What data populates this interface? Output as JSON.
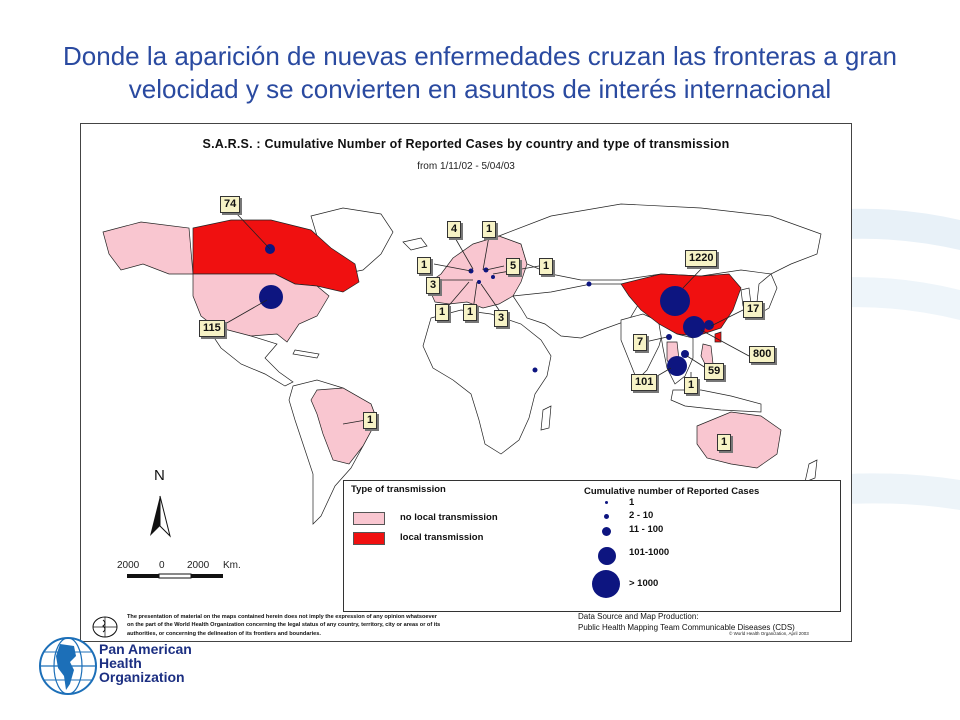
{
  "slide": {
    "title_line1": "Donde la aparición de nuevas enfermedades cruzan las fronteras a gran",
    "title_line2": "velocidad y se convierten en asuntos de interés internacional"
  },
  "map": {
    "title": "S.A.R.S. : Cumulative Number of Reported Cases by country and type of transmission",
    "subtitle": "from 1/11/02 - 5/04/03",
    "north_label": "N",
    "scale": {
      "left": "2000",
      "mid": "0",
      "right": "2000",
      "unit": "Km."
    },
    "colors": {
      "no_local": "#f9c6d0",
      "local": "#f01010",
      "dot": "#0d1580",
      "label_bg": "#f7f3c6"
    },
    "country_labels": [
      {
        "country": "Canada",
        "value": "74"
      },
      {
        "country": "United States",
        "value": "115"
      },
      {
        "country": "Brazil",
        "value": "1"
      },
      {
        "country": "Ireland",
        "value": "1"
      },
      {
        "country": "United Kingdom",
        "value": "4"
      },
      {
        "country": "Sweden",
        "value": "1"
      },
      {
        "country": "Germany",
        "value": "5"
      },
      {
        "country": "Romania",
        "value": "1"
      },
      {
        "country": "France",
        "value": "3"
      },
      {
        "country": "Spain",
        "value": "1"
      },
      {
        "country": "Italy",
        "value": "1"
      },
      {
        "country": "Switzerland",
        "value": "3"
      },
      {
        "country": "China",
        "value": "1220"
      },
      {
        "country": "Taiwan",
        "value": "17"
      },
      {
        "country": "Hong Kong",
        "value": "800"
      },
      {
        "country": "Thailand",
        "value": "7"
      },
      {
        "country": "Philippines",
        "value": "59"
      },
      {
        "country": "Singapore",
        "value": "101"
      },
      {
        "country": "Indonesia",
        "value": "1"
      },
      {
        "country": "Australia",
        "value": "1"
      }
    ],
    "legend": {
      "transmission_title": "Type of transmission",
      "no_local_label": "no local transmission",
      "local_label": "local transmission",
      "cases_title": "Cumulative number of Reported Cases",
      "case_bins": [
        "1",
        "2 - 10",
        "11 - 100",
        "101-1000",
        "> 1000"
      ]
    },
    "disclaimer": [
      "The presentation of material on the maps contained herein does not imply the expression of any opinion whatsoever",
      "on the part of the World Health Organization concerning the legal status of any country, territory, city or areas or of its",
      "authorities, or concerning the delineation of its frontiers and boundaries."
    ],
    "source": {
      "line1": "Data Source and Map Production:",
      "line2": "Public Health Mapping Team Communicable Diseases (CDS)",
      "copyright": "© World Health Organization, April 2003"
    }
  },
  "paho": {
    "line1": "Pan American",
    "line2": "Health",
    "line3": "Organization"
  }
}
